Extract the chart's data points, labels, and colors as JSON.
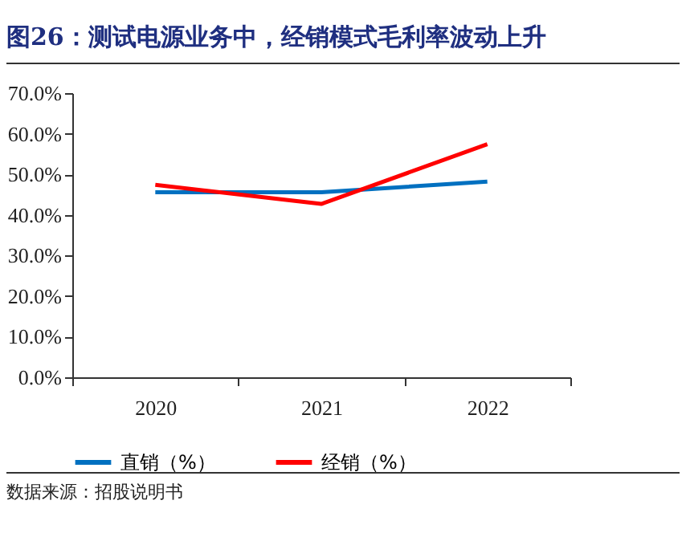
{
  "chart_data": {
    "type": "line",
    "title": "图26：测试电源业务中，经销模式毛利率波动上升",
    "categories": [
      "2020",
      "2021",
      "2022"
    ],
    "series": [
      {
        "name": "直销（%）",
        "color": "#0070c0",
        "values": [
          45.6,
          45.6,
          48.2
        ]
      },
      {
        "name": "经销（%）",
        "color": "#ff0000",
        "values": [
          47.4,
          42.7,
          57.4
        ]
      }
    ],
    "ylim": [
      0,
      70
    ],
    "yticks": [
      {
        "value": 0,
        "label": "0.0%"
      },
      {
        "value": 10,
        "label": "10.0%"
      },
      {
        "value": 20,
        "label": "20.0%"
      },
      {
        "value": 30,
        "label": "30.0%"
      },
      {
        "value": 40,
        "label": "40.0%"
      },
      {
        "value": 50,
        "label": "50.0%"
      },
      {
        "value": 60,
        "label": "60.0%"
      },
      {
        "value": 70,
        "label": "70.0%"
      }
    ],
    "grid": false,
    "legend": "bottom",
    "marker": "none",
    "line_style": "solid",
    "annotations": [
      "数据来源：招股说明书"
    ]
  }
}
